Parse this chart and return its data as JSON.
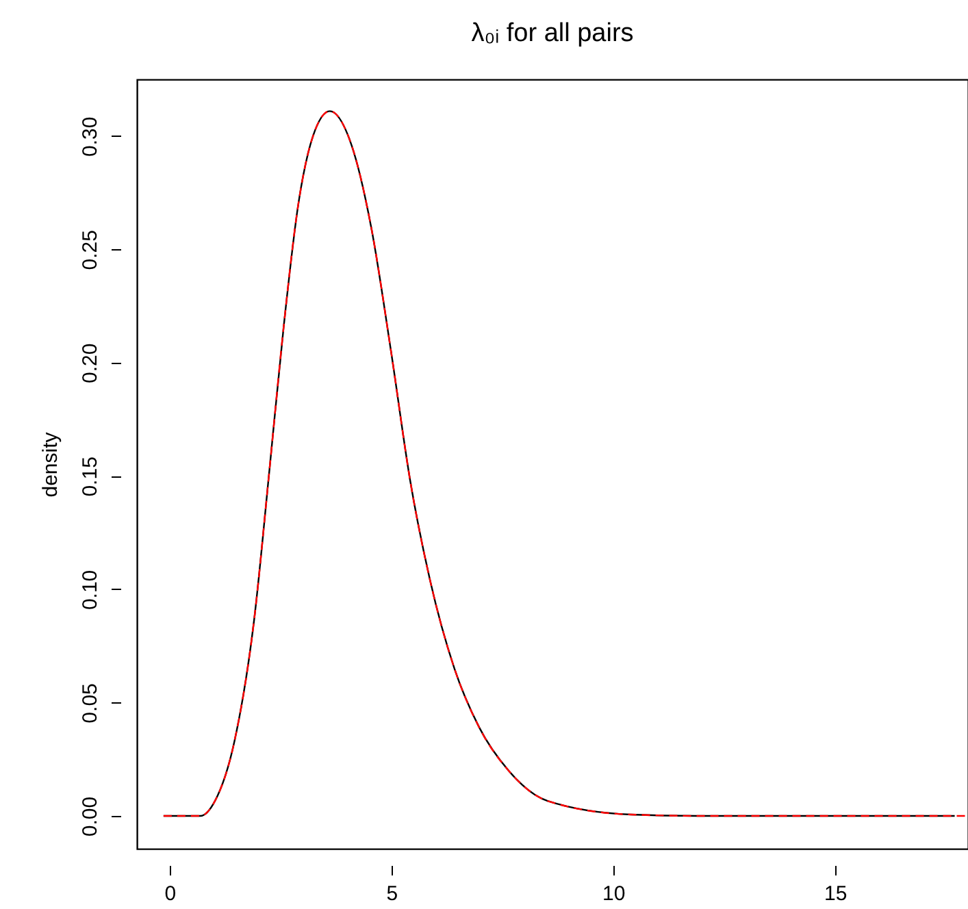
{
  "chart_data": {
    "type": "line",
    "title": "λ₀ᵢ for all pairs",
    "ylabel": "density",
    "x": [
      -0.14,
      0.69,
      1.02,
      1.46,
      1.9,
      2.24,
      2.57,
      2.9,
      3.23,
      3.61,
      4.1,
      4.55,
      4.99,
      5.43,
      5.87,
      6.42,
      6.98,
      7.64,
      8.52,
      10.4,
      12.0,
      14.0,
      16.0,
      17.7
    ],
    "series": [
      {
        "color": "#000000",
        "line_style": "solid",
        "values": [
          0,
          0,
          0.0066,
          0.033,
          0.086,
          0.151,
          0.216,
          0.27,
          0.3,
          0.311,
          0.296,
          0.259,
          0.205,
          0.147,
          0.104,
          0.065,
          0.039,
          0.02,
          0.0066,
          0.0006,
          0,
          0,
          0,
          0
        ]
      },
      {
        "color": "#ff0000",
        "line_style": "dashed",
        "x": [
          -0.14,
          0.69,
          1.02,
          1.46,
          1.9,
          2.24,
          2.57,
          2.9,
          3.23,
          3.61,
          4.1,
          4.55,
          4.99,
          5.43,
          5.87,
          6.42,
          6.98,
          7.64,
          8.52,
          10.4,
          12.0,
          14.0,
          16.0,
          18.0
        ],
        "values": [
          0,
          0,
          0.0066,
          0.033,
          0.086,
          0.151,
          0.216,
          0.27,
          0.3,
          0.311,
          0.296,
          0.259,
          0.205,
          0.147,
          0.104,
          0.065,
          0.039,
          0.02,
          0.0066,
          0.0006,
          0,
          0,
          0,
          0
        ]
      }
    ],
    "xlim": [
      -0.74,
      18.0
    ],
    "xticks": [
      0,
      5,
      10,
      15
    ],
    "ylim": [
      -0.0145,
      0.325
    ],
    "yticks": [
      {
        "value": 0,
        "label": "0.00"
      },
      {
        "value": 0.05,
        "label": "0.05"
      },
      {
        "value": 0.1,
        "label": "0.10"
      },
      {
        "value": 0.15,
        "label": "0.15"
      },
      {
        "value": 0.2,
        "label": "0.20"
      },
      {
        "value": 0.25,
        "label": "0.25"
      },
      {
        "value": 0.3,
        "label": "0.30"
      }
    ],
    "grid": false
  }
}
